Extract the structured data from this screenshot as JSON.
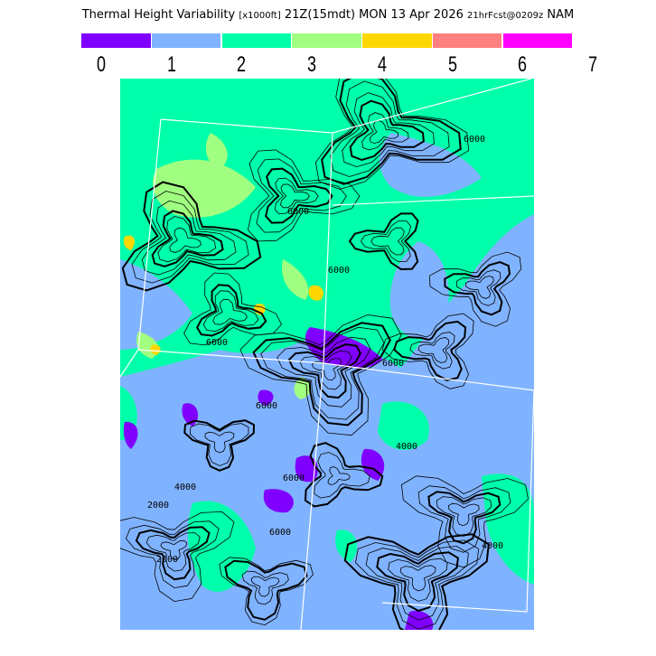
{
  "header": {
    "title_main": "Thermal Height Variability",
    "units": "[x1000ft]",
    "valid_time": "21Z(15mdt) MON 13 Apr 2026",
    "forecast": "21hrFcst@0209z",
    "model": "NAM"
  },
  "legend": {
    "colors": [
      "#8000ff",
      "#80b3ff",
      "#00ffaa",
      "#a0ff80",
      "#ffd700",
      "#ff8080",
      "#ff00ff"
    ],
    "ticks": [
      "0",
      "1",
      "2",
      "3",
      "4",
      "5",
      "6",
      "7"
    ]
  },
  "map": {
    "background_color": "#80b3ff",
    "contour_labels": [
      "6000",
      "6000",
      "6000",
      "6000",
      "6000",
      "6000",
      "6000",
      "6000",
      "4000",
      "4000",
      "2000",
      "2000",
      "4000"
    ]
  }
}
